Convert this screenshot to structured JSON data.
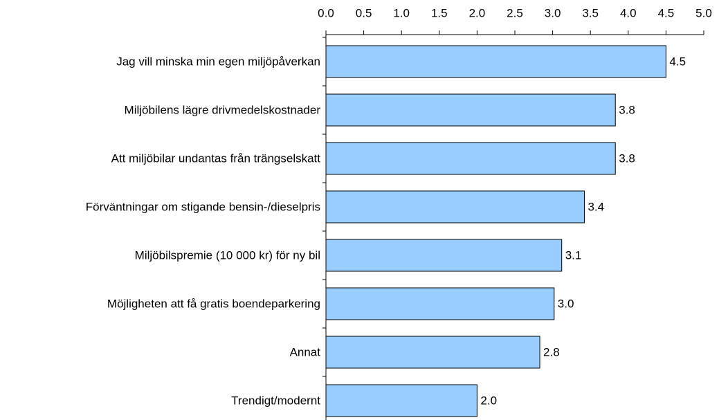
{
  "chart_data": {
    "type": "bar",
    "orientation": "horizontal",
    "categories": [
      "Jag vill minska min egen miljöpåverkan",
      "Miljöbilens lägre drivmedelskostnader",
      "Att miljöbilar undantas från trängselskatt",
      "Förväntningar om stigande bensin-/dieselpris",
      "Miljöbilspremie (10 000 kr) för ny bil",
      "Möjligheten att få gratis boendeparkering",
      "Annat",
      "Trendigt/modernt"
    ],
    "values": [
      4.5,
      3.83,
      3.83,
      3.42,
      3.12,
      3.02,
      2.83,
      2.0
    ],
    "value_labels": [
      "4.5",
      "3.8",
      "3.8",
      "3.4",
      "3.1",
      "3.0",
      "2.8",
      "2.0"
    ],
    "color": "#99ccff",
    "xlim": [
      0,
      5
    ],
    "xticks": [
      {
        "value": 0,
        "label": "0.0"
      },
      {
        "value": 0.5,
        "label": "0.5"
      },
      {
        "value": 1,
        "label": "1.0"
      },
      {
        "value": 1.5,
        "label": "1.5"
      },
      {
        "value": 2,
        "label": "2.0"
      },
      {
        "value": 2.5,
        "label": "2.5"
      },
      {
        "value": 3,
        "label": "3.0"
      },
      {
        "value": 3.5,
        "label": "3.5"
      },
      {
        "value": 4,
        "label": "4.0"
      },
      {
        "value": 4.5,
        "label": "4.5"
      },
      {
        "value": 5,
        "label": "5.0"
      }
    ],
    "grid": false
  }
}
